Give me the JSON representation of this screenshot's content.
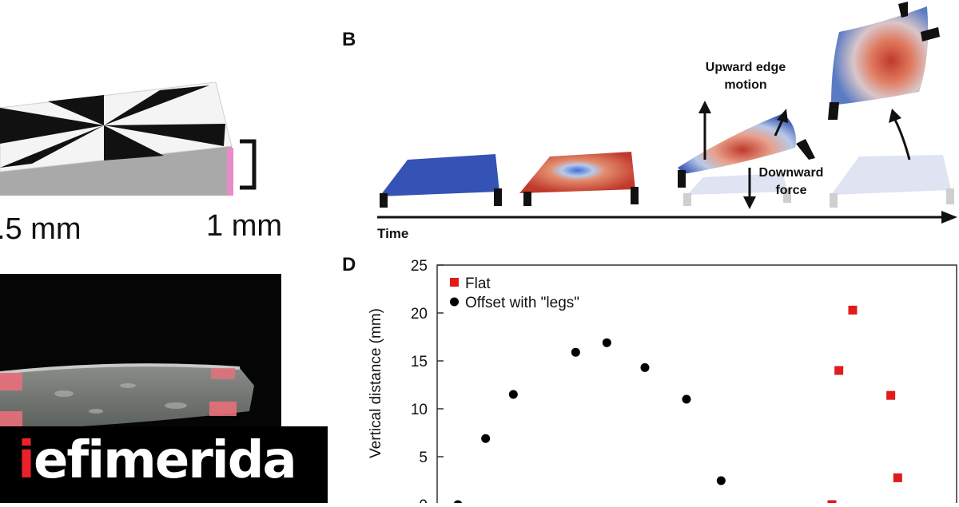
{
  "panel_b": {
    "letter": "B",
    "annotations": {
      "upward": "Upward edge motion",
      "downward": "Downward force"
    },
    "time_label": "Time"
  },
  "panel_a_top": {
    "dim_left": ".5 mm",
    "dim_right": "1 mm"
  },
  "brand": {
    "first_letter": "i",
    "rest": "efimerida",
    "accent_color": "#e8212a"
  },
  "panel_d": {
    "letter": "D"
  },
  "chart_data": {
    "type": "scatter",
    "ylabel": "Vertical distance (mm)",
    "ylim": [
      0,
      25
    ],
    "y_ticks": [
      0,
      5,
      10,
      15,
      20,
      25
    ],
    "grid": false,
    "legend_position": "top-left",
    "series": [
      {
        "name": "Flat",
        "marker": "square",
        "color": "#e01b1b",
        "points": [
          {
            "x": 11.6,
            "y": 14.0
          },
          {
            "x": 12.0,
            "y": 20.3
          },
          {
            "x": 13.1,
            "y": 11.4
          },
          {
            "x": 13.3,
            "y": 2.8
          },
          {
            "x": 11.4,
            "y": 0.0
          }
        ]
      },
      {
        "name": "Offset with \"legs\"",
        "marker": "circle",
        "color": "#000000",
        "points": [
          {
            "x": 0.6,
            "y": 0.0
          },
          {
            "x": 1.4,
            "y": 6.9
          },
          {
            "x": 2.2,
            "y": 11.5
          },
          {
            "x": 4.0,
            "y": 15.9
          },
          {
            "x": 4.9,
            "y": 16.9
          },
          {
            "x": 6.0,
            "y": 14.3
          },
          {
            "x": 7.2,
            "y": 11.0
          },
          {
            "x": 8.2,
            "y": 2.5
          }
        ]
      }
    ]
  }
}
